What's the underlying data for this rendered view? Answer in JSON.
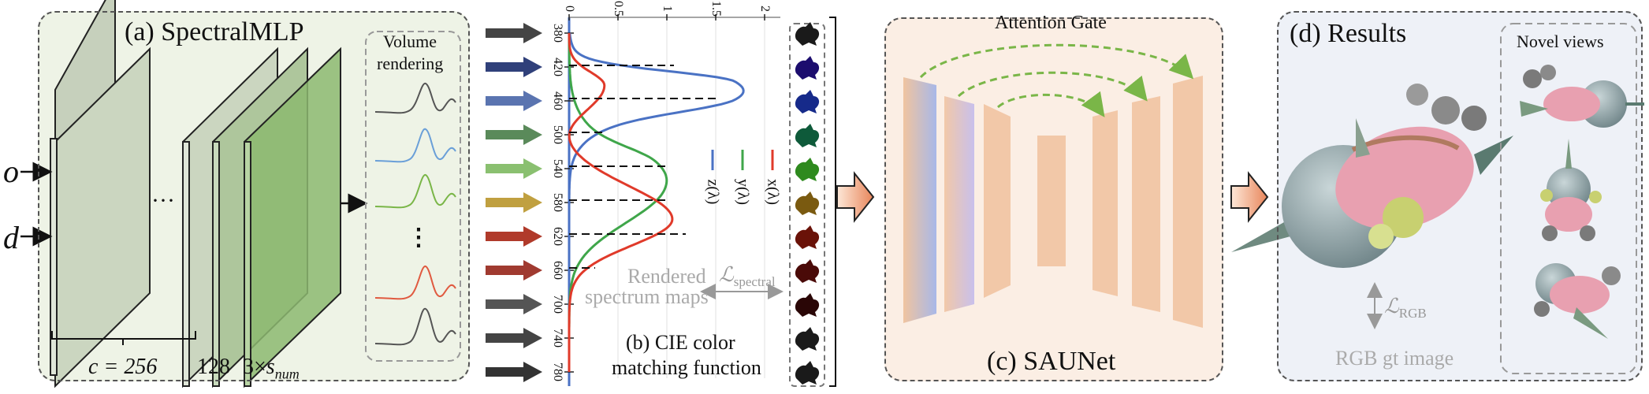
{
  "panel_a": {
    "title": "(a) SpectralMLP",
    "input_o": "o",
    "input_d": "d",
    "ellipsis_h": "···",
    "ellipsis_v": "⋮",
    "volume_title_1": "Volume",
    "volume_title_2": "rendering",
    "dim_c": "c = 256",
    "dim_128": "128",
    "dim_3x": "3×",
    "dim_s": "s",
    "dim_sub": "num"
  },
  "panel_b": {
    "title_1": "(b) CIE color",
    "title_2": "matching function",
    "wavelengths": [
      "380",
      "420",
      "460",
      "500",
      "540",
      "580",
      "620",
      "660",
      "700",
      "740",
      "780"
    ],
    "top_ticks": [
      "0",
      "0.5",
      "1",
      "1.5",
      "2"
    ],
    "legend": [
      {
        "label": "z(λ)",
        "color": "#4a72c4"
      },
      {
        "label": "y(λ)",
        "color": "#3fa64a"
      },
      {
        "label": "x(λ)",
        "color": "#e03a2a"
      }
    ],
    "rendered_1": "Rendered",
    "rendered_2": "spectrum maps",
    "loss_spectral": "ℒ",
    "loss_spectral_sub": "spectral",
    "swatch_colors": [
      "#1a1a1a",
      "#1c0d6e",
      "#162a8a",
      "#0e5a3a",
      "#2e8a1e",
      "#7a5a10",
      "#6a1208",
      "#4a0a08",
      "#2a0606",
      "#1a1a1a",
      "#1a1a1a"
    ],
    "arrow_colors": [
      "#444444",
      "#30407a",
      "#5a74b0",
      "#5a8a5a",
      "#8ac070",
      "#c0a040",
      "#b03a2a",
      "#a03a30",
      "#555555",
      "#444444",
      "#333333"
    ]
  },
  "panel_c": {
    "title": "(c) SAUNet",
    "attention": "Attention Gate"
  },
  "panel_d": {
    "title": "(d) Results",
    "novel_views": "Novel views",
    "loss_rgb": "ℒ",
    "loss_rgb_sub": "RGB",
    "gt_label": "RGB gt image"
  }
}
